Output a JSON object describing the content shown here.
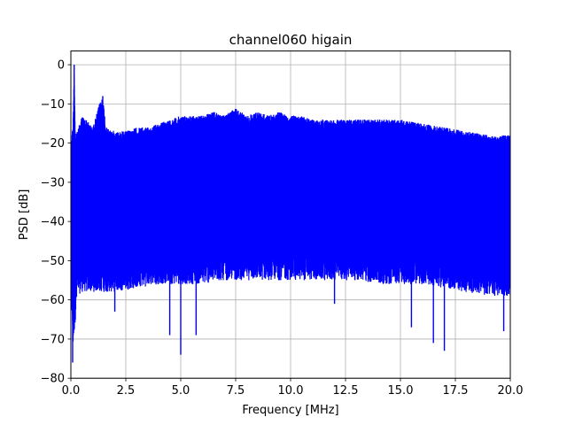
{
  "chart_data": {
    "type": "line",
    "title": "channel060 higain",
    "xlabel": "Frequency [MHz]",
    "ylabel": "PSD [dB]",
    "xlim": [
      0.0,
      20.0
    ],
    "ylim": [
      -80,
      3.5
    ],
    "xticks": [
      0.0,
      2.5,
      5.0,
      7.5,
      10.0,
      12.5,
      15.0,
      17.5,
      20.0
    ],
    "xtick_labels": [
      "0.0",
      "2.5",
      "5.0",
      "7.5",
      "10.0",
      "12.5",
      "15.0",
      "17.5",
      "20.0"
    ],
    "yticks": [
      0,
      -10,
      -20,
      -30,
      -40,
      -50,
      -60,
      -70,
      -80
    ],
    "ytick_labels": [
      "0",
      "−10",
      "−20",
      "−30",
      "−40",
      "−50",
      "−60",
      "−70",
      "−80"
    ],
    "grid": true,
    "series": [
      {
        "color": "#0000ff",
        "upper_envelope": {
          "x": [
            0.0,
            0.1,
            0.15,
            0.2,
            0.3,
            0.5,
            0.7,
            1.0,
            1.3,
            1.45,
            1.6,
            2.0,
            2.5,
            3.0,
            3.5,
            4.0,
            4.5,
            5.0,
            5.5,
            6.0,
            6.5,
            7.0,
            7.5,
            8.0,
            8.5,
            9.0,
            9.5,
            10.0,
            10.5,
            11.0,
            12.0,
            13.0,
            14.0,
            15.0,
            16.0,
            17.0,
            18.0,
            19.0,
            20.0
          ],
          "y": [
            -20,
            -15,
            0,
            -18,
            -17,
            -13,
            -14,
            -16,
            -10,
            -8,
            -16,
            -17,
            -17,
            -16,
            -16,
            -15,
            -14,
            -13,
            -13,
            -13,
            -12,
            -13,
            -11,
            -13,
            -12,
            -13,
            -12,
            -13,
            -13,
            -14,
            -14,
            -14,
            -14,
            -14,
            -15,
            -16,
            -17,
            -18,
            -18
          ]
        },
        "lower_envelope": {
          "x": [
            0.0,
            0.1,
            0.3,
            0.5,
            1.0,
            2.0,
            3.0,
            4.0,
            5.0,
            6.0,
            7.0,
            8.0,
            9.0,
            10.0,
            11.0,
            12.0,
            13.0,
            14.0,
            15.0,
            16.0,
            17.0,
            18.0,
            19.0,
            20.0
          ],
          "y": [
            -62,
            -76,
            -63,
            -62,
            -62,
            -62,
            -61,
            -60,
            -60,
            -60,
            -59,
            -59,
            -59,
            -59,
            -59,
            -59,
            -59,
            -60,
            -60,
            -60,
            -61,
            -62,
            -63,
            -63
          ]
        },
        "spikes": [
          {
            "x": 0.08,
            "y": -76
          },
          {
            "x": 0.15,
            "y": 0
          },
          {
            "x": 1.45,
            "y": -8
          },
          {
            "x": 2.0,
            "y": -63
          },
          {
            "x": 4.5,
            "y": -69
          },
          {
            "x": 5.0,
            "y": -74
          },
          {
            "x": 5.7,
            "y": -69
          },
          {
            "x": 12.0,
            "y": -61
          },
          {
            "x": 15.5,
            "y": -67
          },
          {
            "x": 16.5,
            "y": -71
          },
          {
            "x": 17.0,
            "y": -73
          },
          {
            "x": 19.7,
            "y": -68
          }
        ]
      }
    ]
  }
}
